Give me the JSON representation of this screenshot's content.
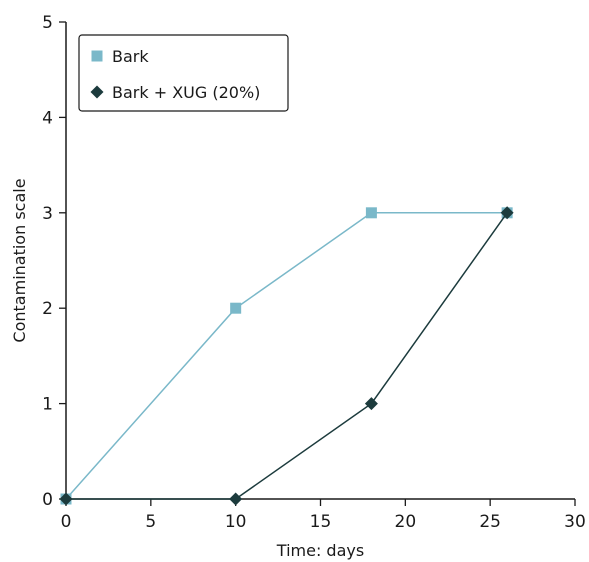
{
  "chart_data": {
    "type": "line",
    "xlabel": "Time: days",
    "ylabel": "Contamination scale",
    "xlim": [
      0,
      30
    ],
    "ylim": [
      0,
      5
    ],
    "x_ticks": [
      0,
      5,
      10,
      15,
      20,
      25,
      30
    ],
    "y_ticks": [
      0,
      1,
      2,
      3,
      4,
      5
    ],
    "x_tick_labels": [
      "0",
      "5",
      "10",
      "15",
      "20",
      "25",
      "30"
    ],
    "y_tick_labels": [
      "0",
      "1",
      "2",
      "3",
      "4",
      "5"
    ],
    "grid": false,
    "legend_position": "top-left",
    "series": [
      {
        "name": "Bark",
        "marker": "square",
        "color": "#7ab8c9",
        "x": [
          0,
          10,
          18,
          26
        ],
        "y": [
          0,
          2,
          3,
          3
        ]
      },
      {
        "name": "Bark + XUG (20%)",
        "marker": "diamond",
        "color": "#1c3b3d",
        "x": [
          0,
          10,
          18,
          26
        ],
        "y": [
          0,
          0,
          1,
          3
        ]
      }
    ]
  }
}
